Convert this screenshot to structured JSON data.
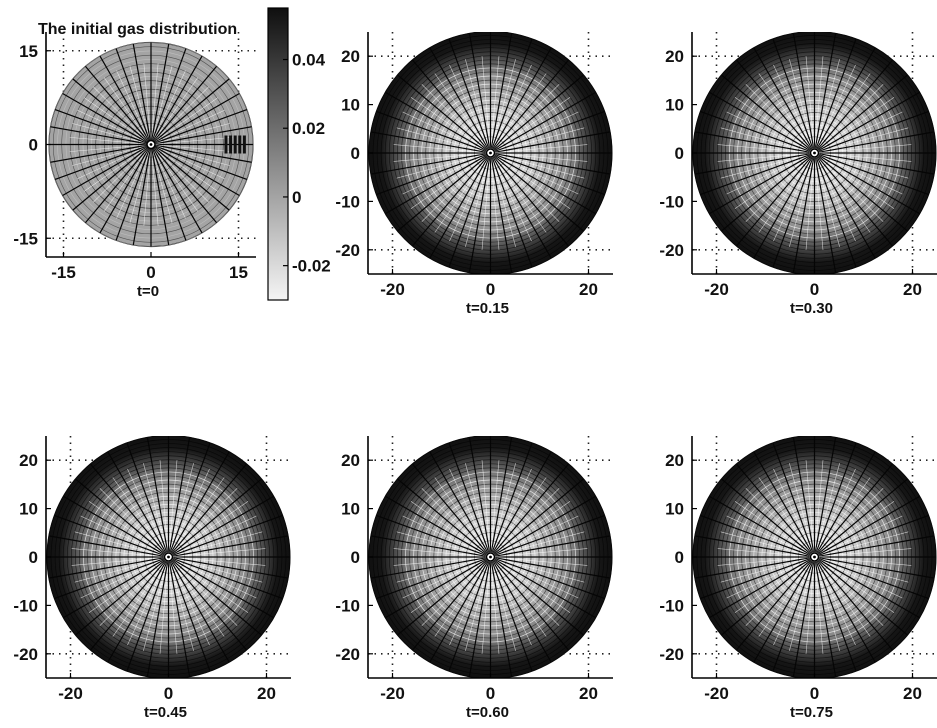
{
  "chart_data": [
    {
      "type": "heatmap",
      "title": "The initial gas distribution",
      "caption": "t=0",
      "xlim": [
        -18,
        18
      ],
      "ylim": [
        -18,
        18
      ],
      "xticks": [
        -15,
        0,
        15
      ],
      "yticks": [
        -15,
        0,
        15
      ],
      "grid": "dotted",
      "rim_level": 0.0,
      "center_level": 0.0,
      "colorbar": {
        "ticks": [
          0.04,
          0.02,
          0,
          -0.02
        ],
        "range": [
          -0.03,
          0.055
        ],
        "colormap": "gray"
      }
    },
    {
      "type": "heatmap",
      "title": "",
      "caption": "t=0.15",
      "xlim": [
        -25,
        25
      ],
      "ylim": [
        -25,
        25
      ],
      "xticks": [
        -20,
        0,
        20
      ],
      "yticks": [
        20,
        10,
        0,
        -10,
        -20
      ],
      "grid": "dotted",
      "rim_level": 0.05,
      "center_level": -0.02
    },
    {
      "type": "heatmap",
      "title": "",
      "caption": "t=0.30",
      "xlim": [
        -25,
        25
      ],
      "ylim": [
        -25,
        25
      ],
      "xticks": [
        -20,
        0,
        20
      ],
      "yticks": [
        20,
        10,
        0,
        -10,
        -20
      ],
      "grid": "dotted",
      "rim_level": 0.05,
      "center_level": -0.02
    },
    {
      "type": "heatmap",
      "title": "",
      "caption": "t=0.45",
      "xlim": [
        -25,
        25
      ],
      "ylim": [
        -25,
        25
      ],
      "xticks": [
        -20,
        0,
        20
      ],
      "yticks": [
        20,
        10,
        0,
        -10,
        -20
      ],
      "grid": "dotted",
      "rim_level": 0.05,
      "center_level": -0.02
    },
    {
      "type": "heatmap",
      "title": "",
      "caption": "t=0.60",
      "xlim": [
        -25,
        25
      ],
      "ylim": [
        -25,
        25
      ],
      "xticks": [
        -20,
        0,
        20
      ],
      "yticks": [
        20,
        10,
        0,
        -10,
        -20
      ],
      "grid": "dotted",
      "rim_level": 0.05,
      "center_level": -0.02
    },
    {
      "type": "heatmap",
      "title": "",
      "caption": "t=0.75",
      "xlim": [
        -25,
        25
      ],
      "ylim": [
        -25,
        25
      ],
      "xticks": [
        -20,
        0,
        20
      ],
      "yticks": [
        20,
        10,
        0,
        -10,
        -20
      ],
      "grid": "dotted",
      "rim_level": 0.05,
      "center_level": -0.02
    }
  ],
  "colors": {
    "dark": "#111111",
    "mid": "#6a6a6a",
    "light": "#d4d4d4",
    "mesh_dark": "#0a0a0a",
    "mesh_light": "#f2f2f2"
  }
}
